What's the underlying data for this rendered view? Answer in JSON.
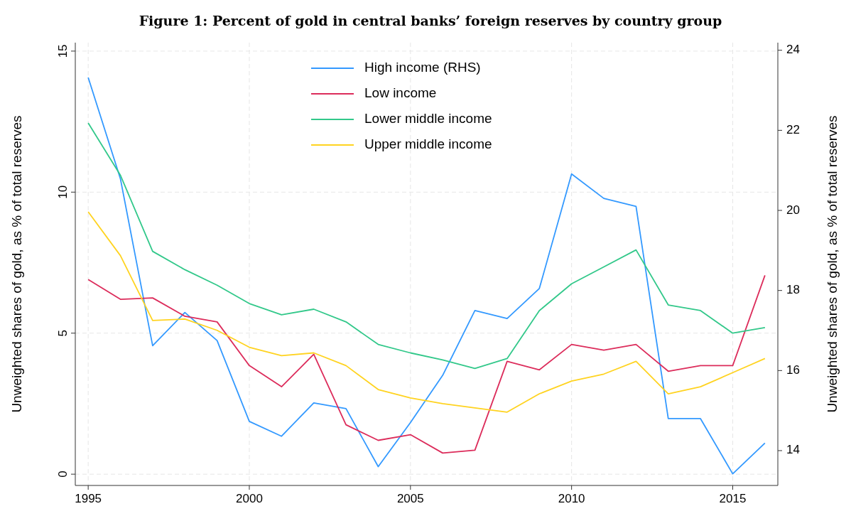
{
  "chart_data": {
    "type": "line",
    "title": "Figure 1: Percent of gold in central banks’ foreign reserves by country group",
    "ylabel": "Unweighted shares of gold, as % of total reserves",
    "y2label": "Unweighted shares of gold, as % of total reserves",
    "x": [
      1995,
      1996,
      1997,
      1998,
      1999,
      2000,
      2001,
      2002,
      2003,
      2004,
      2005,
      2006,
      2007,
      2008,
      2009,
      2010,
      2011,
      2012,
      2013,
      2014,
      2015,
      2016
    ],
    "xlim": [
      1994.6,
      2016.4
    ],
    "xticks": [
      1995,
      2000,
      2005,
      2010,
      2015
    ],
    "ylim": [
      -0.4,
      15.3
    ],
    "yticks": [
      0,
      5,
      10,
      15
    ],
    "y2lim": [
      13.13,
      24.19
    ],
    "y2ticks": [
      14,
      16,
      18,
      20,
      22,
      24
    ],
    "grid": true,
    "legend": "top",
    "line_style": "solid",
    "marker": "none",
    "series": [
      {
        "name": "High income (RHS)",
        "color": "#3399ff",
        "axis": "y2",
        "values": [
          23.32,
          20.79,
          16.62,
          17.45,
          16.75,
          14.73,
          14.36,
          15.19,
          15.05,
          13.6,
          14.7,
          15.88,
          17.5,
          17.3,
          18.05,
          20.91,
          20.3,
          20.1,
          14.8,
          14.8,
          13.42,
          14.19
        ]
      },
      {
        "name": "Low income",
        "color": "#dc2c5b",
        "values": [
          6.9,
          6.2,
          6.25,
          5.6,
          5.4,
          3.85,
          3.1,
          4.25,
          1.75,
          1.2,
          1.4,
          0.75,
          0.85,
          4.0,
          3.7,
          4.6,
          4.4,
          4.6,
          3.65,
          3.85,
          3.85,
          7.05
        ]
      },
      {
        "name": "Lower middle income",
        "color": "#32c88a",
        "values": [
          12.45,
          10.6,
          7.9,
          7.25,
          6.7,
          6.05,
          5.65,
          5.85,
          5.4,
          4.6,
          4.3,
          4.05,
          3.75,
          4.1,
          5.8,
          6.75,
          7.35,
          7.95,
          6.0,
          5.8,
          5.0,
          5.2
        ]
      },
      {
        "name": "Upper middle income",
        "color": "#ffd320",
        "values": [
          9.3,
          7.75,
          5.45,
          5.5,
          5.1,
          4.5,
          4.2,
          4.3,
          3.85,
          3.0,
          2.7,
          2.5,
          2.35,
          2.2,
          2.85,
          3.3,
          3.55,
          4.0,
          2.85,
          3.1,
          3.6,
          4.1
        ]
      }
    ]
  }
}
